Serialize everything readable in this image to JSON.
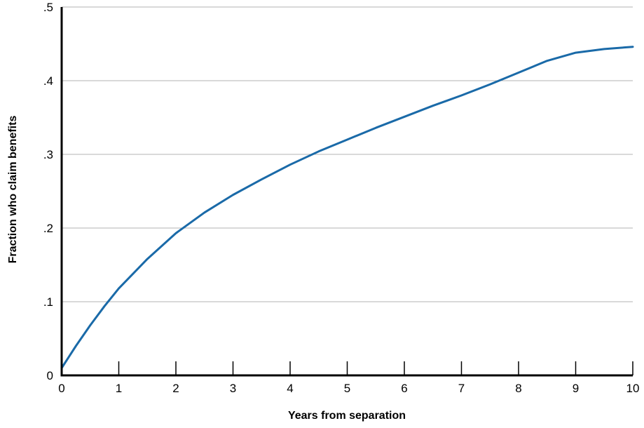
{
  "chart_data": {
    "type": "line",
    "title": "",
    "xlabel": "Years from separation",
    "ylabel": "Fraction who claim benefits",
    "xlim": [
      0,
      10
    ],
    "ylim": [
      0,
      0.5
    ],
    "x_ticks": [
      {
        "value": 0,
        "label": "0"
      },
      {
        "value": 1,
        "label": "1"
      },
      {
        "value": 2,
        "label": "2"
      },
      {
        "value": 3,
        "label": "3"
      },
      {
        "value": 4,
        "label": "4"
      },
      {
        "value": 5,
        "label": "5"
      },
      {
        "value": 6,
        "label": "6"
      },
      {
        "value": 7,
        "label": "7"
      },
      {
        "value": 8,
        "label": "8"
      },
      {
        "value": 9,
        "label": "9"
      },
      {
        "value": 10,
        "label": "10"
      }
    ],
    "y_ticks": [
      {
        "value": 0,
        "label": "0"
      },
      {
        "value": 0.1,
        "label": ".1"
      },
      {
        "value": 0.2,
        "label": ".2"
      },
      {
        "value": 0.3,
        "label": ".3"
      },
      {
        "value": 0.4,
        "label": ".4"
      },
      {
        "value": 0.5,
        "label": ".5"
      }
    ],
    "grid": {
      "horizontal": true,
      "vertical": false
    },
    "colors": {
      "line": "#1a6aa8",
      "grid": "#b3b3b3",
      "axis": "#000000"
    },
    "series": [
      {
        "x": [
          0,
          0.25,
          0.5,
          0.75,
          1,
          1.5,
          2,
          2.5,
          3,
          3.5,
          4,
          4.5,
          5,
          5.5,
          6,
          6.5,
          7,
          7.5,
          8,
          8.5,
          9,
          9.5,
          10
        ],
        "y": [
          0.01,
          0.04,
          0.068,
          0.094,
          0.118,
          0.158,
          0.193,
          0.221,
          0.245,
          0.266,
          0.286,
          0.304,
          0.32,
          0.336,
          0.351,
          0.366,
          0.38,
          0.395,
          0.411,
          0.427,
          0.438,
          0.443,
          0.446
        ]
      }
    ]
  }
}
